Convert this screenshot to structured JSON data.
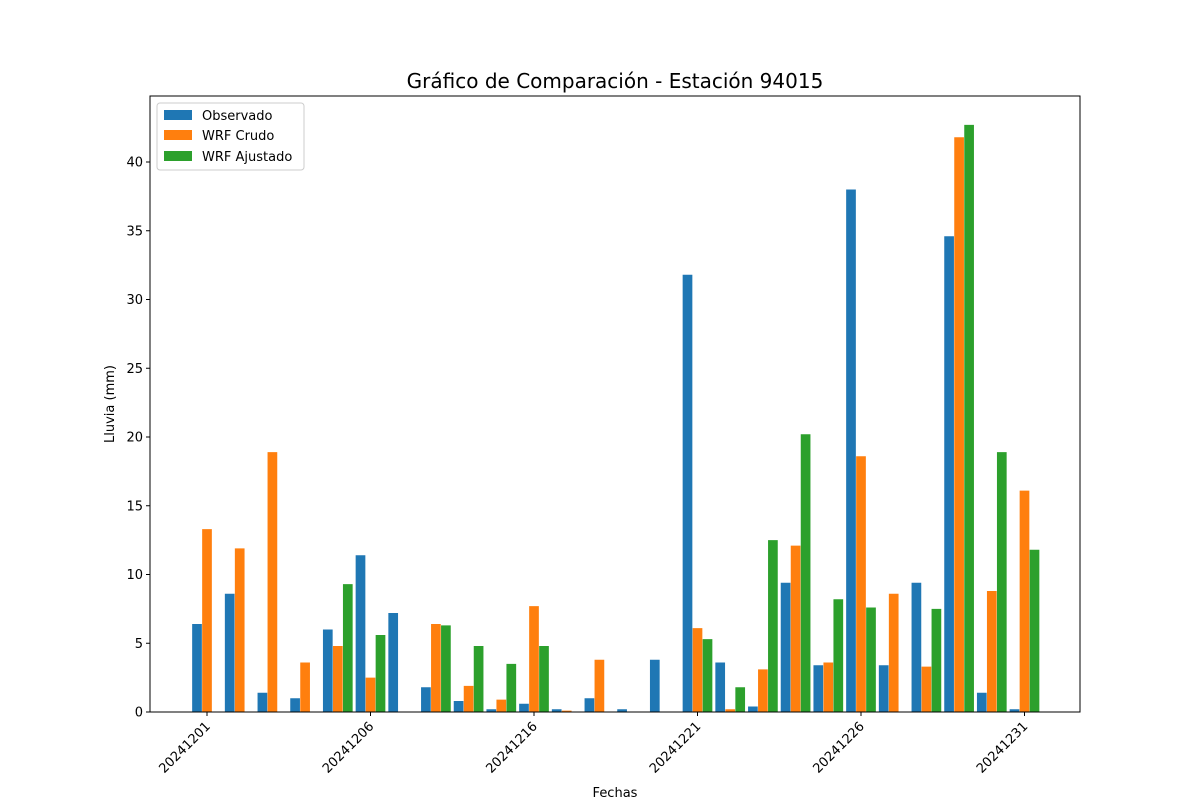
{
  "chart_data": {
    "type": "bar",
    "title": "Gráfico de Comparación - Estación 94015",
    "xlabel": "Fechas",
    "ylabel": "Lluvia (mm)",
    "ylim": [
      0,
      44.8
    ],
    "y_ticks": [
      0,
      5,
      10,
      15,
      20,
      25,
      30,
      35,
      40
    ],
    "x_tick_labels": [
      {
        "slot": 0,
        "label": "20241201"
      },
      {
        "slot": 5,
        "label": "20241206"
      },
      {
        "slot": 10,
        "label": "20241216"
      },
      {
        "slot": 15,
        "label": "20241221"
      },
      {
        "slot": 20,
        "label": "20241226"
      },
      {
        "slot": 25,
        "label": "20241231"
      }
    ],
    "legend_position": "top-left",
    "grid": false,
    "colors": {
      "Observado": "#1f77b4",
      "WRF Crudo": "#ff7f0e",
      "WRF Ajustado": "#2ca02c"
    },
    "categories": [
      "0",
      "1",
      "2",
      "3",
      "4",
      "5",
      "6",
      "7",
      "8",
      "9",
      "10",
      "11",
      "12",
      "13",
      "14",
      "15",
      "16",
      "17",
      "18",
      "19",
      "20",
      "21",
      "22",
      "23",
      "24",
      "25"
    ],
    "series": [
      {
        "name": "Observado",
        "values": [
          6.4,
          8.6,
          1.4,
          1.0,
          6.0,
          11.4,
          7.2,
          1.8,
          0.8,
          0.2,
          0.6,
          0.2,
          1.0,
          0.2,
          3.8,
          31.8,
          3.6,
          0.4,
          9.4,
          3.4,
          38.0,
          3.4,
          9.4,
          34.6,
          1.4,
          0.2
        ]
      },
      {
        "name": "WRF Crudo",
        "values": [
          13.3,
          11.9,
          18.9,
          3.6,
          4.8,
          2.5,
          0.0,
          6.4,
          1.9,
          0.9,
          7.7,
          0.1,
          3.8,
          0.0,
          0.0,
          6.1,
          0.2,
          3.1,
          12.1,
          3.6,
          18.6,
          8.6,
          3.3,
          41.8,
          8.8,
          16.1
        ]
      },
      {
        "name": "WRF Ajustado",
        "values": [
          0.0,
          0.0,
          0.0,
          0.0,
          9.3,
          5.6,
          0.0,
          6.3,
          4.8,
          3.5,
          4.8,
          0.0,
          0.0,
          0.0,
          0.0,
          5.3,
          1.8,
          12.5,
          20.2,
          8.2,
          7.6,
          0.0,
          7.5,
          42.7,
          18.9,
          11.8
        ]
      }
    ]
  }
}
